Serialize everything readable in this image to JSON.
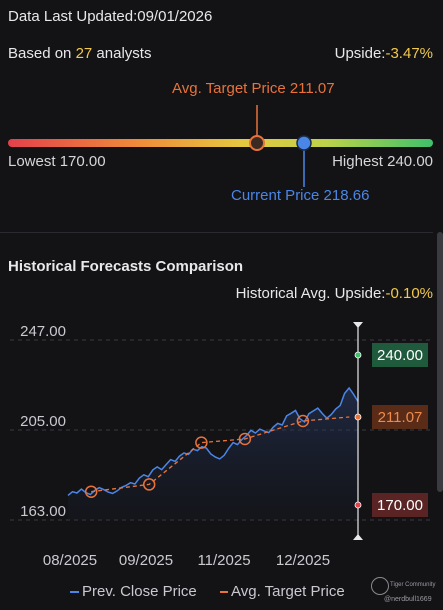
{
  "header": {
    "updated_label": "Data Last Updated:09/01/2026",
    "based_prefix": "Based on ",
    "analyst_count": "27",
    "based_suffix": " analysts",
    "upside_label": "Upside:",
    "upside_value": "-3.47%"
  },
  "gauge": {
    "avg_target_label": "Avg. Target Price 211.07",
    "lowest_label": "Lowest 170.00",
    "highest_label": "Highest 240.00",
    "current_label": "Current Price 218.66",
    "low": 170.0,
    "high": 240.0,
    "avg_target": 211.07,
    "current": 218.66
  },
  "history": {
    "title": "Historical Forecasts Comparison",
    "hist_upside_label": "Historical Avg. Upside:",
    "hist_upside_value": "-0.10%",
    "legend_prev": "Prev. Close Price",
    "legend_avg": "Avg. Target Price"
  },
  "watermark": {
    "brand": "Tiger Community",
    "user": "@nerdbull1669"
  },
  "colors": {
    "accent_yellow": "#f2c94c",
    "orange": "#e8733a",
    "blue": "#3b7ae0",
    "green_badge": "#1f5a3c",
    "red_badge": "#5a2424"
  },
  "chart_data": {
    "type": "line",
    "x_ticks": [
      "08/2025",
      "09/2025",
      "11/2025",
      "12/2025"
    ],
    "y_ticks": [
      "247.00",
      "205.00",
      "163.00"
    ],
    "ylim": [
      163,
      247
    ],
    "series": [
      {
        "name": "Prev. Close Price",
        "values": [
          174.5,
          176.2,
          175.6,
          177.4,
          175.8,
          174.9,
          176.8,
          178.1,
          177.2,
          176.0,
          175.4,
          176.6,
          178.2,
          179.1,
          180.4,
          179.8,
          182.6,
          184.1,
          183.2,
          186.4,
          187.8,
          186.5,
          188.9,
          191.2,
          190.4,
          192.8,
          194.3,
          193.6,
          196.1,
          195.4,
          197.2,
          196.6,
          193.8,
          192.4,
          191.5,
          193.2,
          196.4,
          199.1,
          198.2,
          200.6,
          202.4,
          204.8,
          203.6,
          205.4,
          204.5,
          203.8,
          206.3,
          208.1,
          207.4,
          211.6,
          212.8,
          214.1,
          210.2,
          208.8,
          212.6,
          213.9,
          215.2,
          212.7,
          210.5,
          212.2,
          214.8,
          216.5,
          222.1,
          224.6,
          221.7,
          218.3
        ]
      },
      {
        "name": "Avg. Target Price",
        "points": [
          [
            0.08,
            176.2
          ],
          [
            0.28,
            179.6
          ],
          [
            0.46,
            199.1
          ],
          [
            0.61,
            200.8
          ],
          [
            0.81,
            209.2
          ],
          [
            0.97,
            211.07
          ]
        ]
      }
    ],
    "marker_labels": [
      "240.00",
      "211.07",
      "170.00"
    ],
    "marker_values": [
      240.0,
      211.07,
      170.0
    ]
  }
}
